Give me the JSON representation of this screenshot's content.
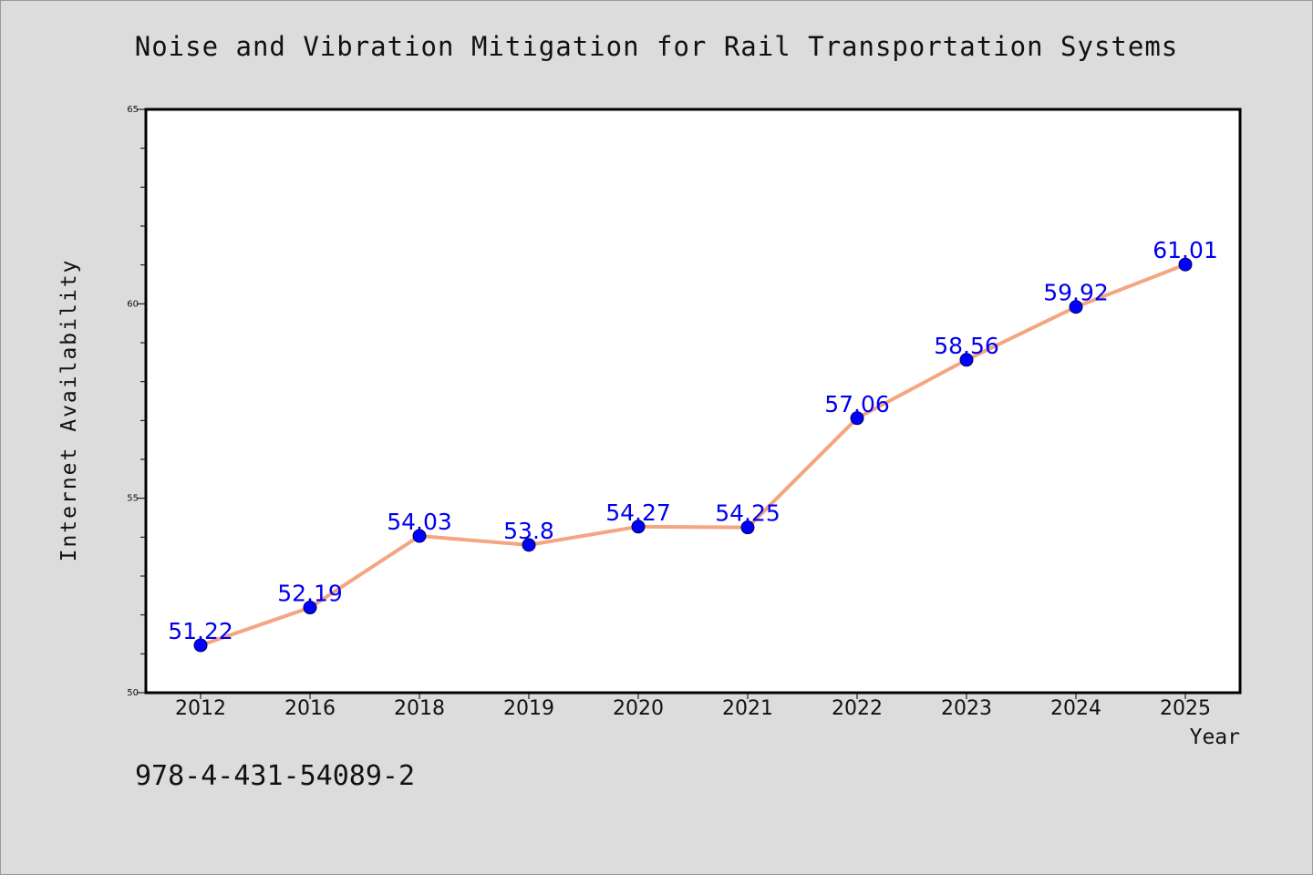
{
  "title": "Noise and Vibration Mitigation for Rail Transportation Systems",
  "isbn_text": "978-4-431-54089-2",
  "colors": {
    "background": "#dcdcdc",
    "plot_background": "#ffffff",
    "line": "#f4a582",
    "marker": "#0000ff",
    "data_label": "#0000ee"
  },
  "chart_data": {
    "type": "line",
    "title": "Noise and Vibration Mitigation for Rail Transportation Systems",
    "xlabel": "Year",
    "ylabel": "Internet Availability",
    "categories": [
      "2012",
      "2016",
      "2018",
      "2019",
      "2020",
      "2021",
      "2022",
      "2023",
      "2024",
      "2025"
    ],
    "series": [
      {
        "values": [
          51.22,
          52.19,
          54.03,
          53.8,
          54.27,
          54.25,
          57.06,
          58.56,
          59.92,
          61.01
        ],
        "labels": [
          "51.22",
          "52.19",
          "54.03",
          "53.8",
          "54.27",
          "54.25",
          "57.06",
          "58.56",
          "59.92",
          "61.01"
        ]
      }
    ],
    "ylim": [
      50,
      65
    ],
    "yticks": [
      "50",
      "55",
      "60",
      "65"
    ],
    "grid": false,
    "legend": "none"
  }
}
